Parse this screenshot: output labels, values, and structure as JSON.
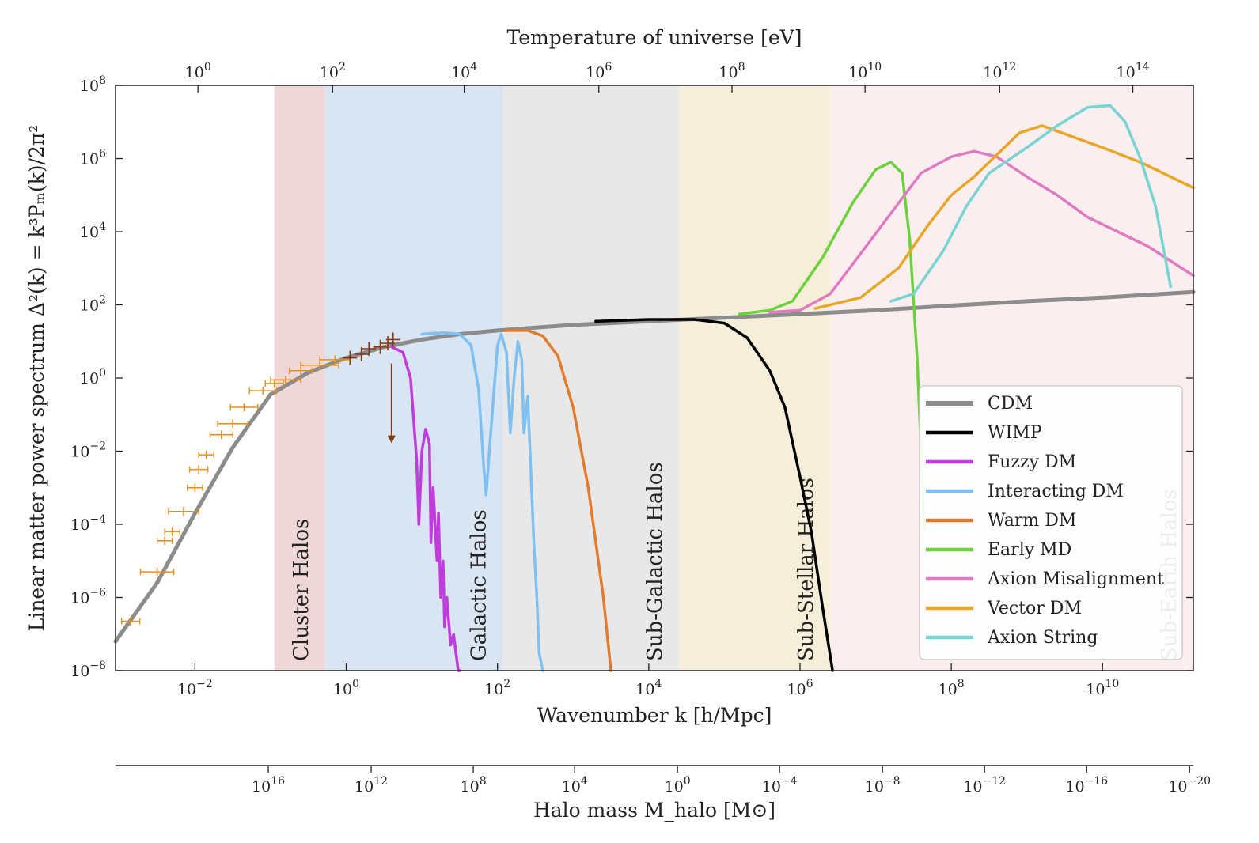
{
  "chart_data": {
    "type": "line",
    "x_scale": "log10",
    "y_scale": "log10",
    "xlim_log10": [
      -3.05,
      11.2
    ],
    "ylim_log10": [
      -8,
      8
    ],
    "xlabel": "Wavenumber k  [h/Mpc]",
    "ylabel": "Linear matter power spectrum Δ²(k) = k³Pₘ(k)/2π²",
    "top_axis": {
      "label": "Temperature of universe [eV]",
      "ticks": [
        {
          "base": "10",
          "exp": "0",
          "at_log10k": -1.96
        },
        {
          "base": "10",
          "exp": "2",
          "at_log10k": -0.18
        },
        {
          "base": "10",
          "exp": "4",
          "at_log10k": 1.56
        },
        {
          "base": "10",
          "exp": "6",
          "at_log10k": 3.34
        },
        {
          "base": "10",
          "exp": "8",
          "at_log10k": 5.1
        },
        {
          "base": "10",
          "exp": "10",
          "at_log10k": 6.86
        },
        {
          "base": "10",
          "exp": "12",
          "at_log10k": 8.64
        },
        {
          "base": "10",
          "exp": "14",
          "at_log10k": 10.4
        }
      ]
    },
    "bottom_ticks": [
      {
        "base": "10",
        "exp": "−2",
        "at_log10k": -2
      },
      {
        "base": "10",
        "exp": "0",
        "at_log10k": 0
      },
      {
        "base": "10",
        "exp": "2",
        "at_log10k": 2
      },
      {
        "base": "10",
        "exp": "4",
        "at_log10k": 4
      },
      {
        "base": "10",
        "exp": "6",
        "at_log10k": 6
      },
      {
        "base": "10",
        "exp": "8",
        "at_log10k": 8
      },
      {
        "base": "10",
        "exp": "10",
        "at_log10k": 10
      }
    ],
    "y_ticks": [
      {
        "base": "10",
        "exp": "8",
        "value_log10": 8
      },
      {
        "base": "10",
        "exp": "6",
        "value_log10": 6
      },
      {
        "base": "10",
        "exp": "4",
        "value_log10": 4
      },
      {
        "base": "10",
        "exp": "2",
        "value_log10": 2
      },
      {
        "base": "10",
        "exp": "0",
        "value_log10": 0
      },
      {
        "base": "10",
        "exp": "−2",
        "value_log10": -2
      },
      {
        "base": "10",
        "exp": "−4",
        "value_log10": -4
      },
      {
        "base": "10",
        "exp": "−6",
        "value_log10": -6
      },
      {
        "base": "10",
        "exp": "−8",
        "value_log10": -8
      }
    ],
    "halo_axis": {
      "label": "Halo mass M_halo [M⊙]",
      "ticks": [
        {
          "base": "10",
          "exp": "16",
          "at_log10k": -1.03
        },
        {
          "base": "10",
          "exp": "12",
          "at_log10k": 0.33
        },
        {
          "base": "10",
          "exp": "8",
          "at_log10k": 1.68
        },
        {
          "base": "10",
          "exp": "4",
          "at_log10k": 3.02
        },
        {
          "base": "10",
          "exp": "0",
          "at_log10k": 4.38
        },
        {
          "base": "10",
          "exp": "−4",
          "at_log10k": 5.73
        },
        {
          "base": "10",
          "exp": "−8",
          "at_log10k": 7.09
        },
        {
          "base": "10",
          "exp": "−12",
          "at_log10k": 8.44
        },
        {
          "base": "10",
          "exp": "−16",
          "at_log10k": 9.79
        },
        {
          "base": "10",
          "exp": "−20",
          "at_log10k": 11.15
        }
      ]
    },
    "regions": [
      {
        "label": "Cluster Halos",
        "k_log10": [
          -0.95,
          -0.28
        ],
        "color": "#e9c6c6"
      },
      {
        "label": "Galactic Halos",
        "k_log10": [
          -0.28,
          2.07
        ],
        "color": "#c9daee"
      },
      {
        "label": "Sub-Galactic Halos",
        "k_log10": [
          2.07,
          4.4
        ],
        "color": "#dedede"
      },
      {
        "label": "Sub-Stellar Halos",
        "k_log10": [
          4.4,
          6.4
        ],
        "color": "#f1e7c8"
      },
      {
        "label": "Sub-Earth Halos",
        "k_log10": [
          6.4,
          11.2
        ],
        "color": "#f8e7e7"
      }
    ],
    "series": [
      {
        "name": "CDM",
        "color": "#8c8c8c",
        "width": 5,
        "x_log10": [
          -3.05,
          -2.5,
          -2,
          -1.5,
          -1,
          -0.5,
          0,
          0.5,
          1,
          1.5,
          2,
          2.5,
          3,
          3.5,
          4,
          5,
          6,
          7,
          8,
          9,
          10,
          11.2
        ],
        "y_log10": [
          -7.2,
          -5.6,
          -3.7,
          -1.9,
          -0.45,
          0.15,
          0.55,
          0.85,
          1.05,
          1.2,
          1.3,
          1.38,
          1.45,
          1.5,
          1.55,
          1.65,
          1.75,
          1.85,
          1.98,
          2.1,
          2.2,
          2.35
        ]
      },
      {
        "name": "WIMP",
        "color": "#000000",
        "width": 3.5,
        "x_log10": [
          3.3,
          4,
          4.6,
          5,
          5.3,
          5.6,
          5.8,
          6,
          6.15,
          6.3,
          6.43
        ],
        "y_log10": [
          1.55,
          1.6,
          1.6,
          1.5,
          1.1,
          0.2,
          -0.8,
          -2.7,
          -4.2,
          -6.3,
          -8
        ]
      },
      {
        "name": "Fuzzy DM",
        "color": "#c03cdc",
        "width": 3.5,
        "x_log10": [
          0.6,
          0.75,
          0.85,
          0.93,
          0.96,
          0.98,
          1,
          1.05,
          1.1,
          1.12,
          1.15,
          1.2,
          1.22,
          1.25,
          1.28,
          1.3,
          1.33,
          1.38,
          1.42,
          1.48,
          1.5
        ],
        "y_log10": [
          0.85,
          0.7,
          0,
          -2.2,
          -4,
          -3,
          -2,
          -1.4,
          -1.8,
          -4.5,
          -3,
          -5,
          -3.7,
          -6,
          -5,
          -6.8,
          -6,
          -7.3,
          -7,
          -8,
          -8
        ]
      },
      {
        "name": "Interacting DM",
        "color": "#7ec0f2",
        "width": 3.5,
        "x_log10": [
          1,
          1.3,
          1.5,
          1.65,
          1.75,
          1.82,
          1.85,
          1.9,
          2,
          2.05,
          2.12,
          2.17,
          2.22,
          2.27,
          2.32,
          2.35,
          2.4,
          2.43,
          2.48,
          2.52,
          2.55,
          2.6
        ],
        "y_log10": [
          1.2,
          1.24,
          1.2,
          0.9,
          -0.3,
          -2.5,
          -3.2,
          -1.8,
          0.9,
          1.2,
          0.7,
          -1.5,
          0,
          1,
          0.5,
          -1.5,
          -0.5,
          -2,
          -4.5,
          -6,
          -7.5,
          -8
        ]
      },
      {
        "name": "Warm DM",
        "color": "#e37b2e",
        "width": 3.5,
        "x_log10": [
          2.1,
          2.4,
          2.6,
          2.8,
          3,
          3.2,
          3.4,
          3.5
        ],
        "y_log10": [
          1.3,
          1.3,
          1.15,
          0.6,
          -0.8,
          -3,
          -6,
          -8
        ]
      },
      {
        "name": "Early MD",
        "color": "#6cd23c",
        "width": 3.5,
        "x_log10": [
          5.2,
          5.6,
          5.9,
          6.3,
          6.7,
          7,
          7.2,
          7.35,
          7.45,
          7.55,
          7.6,
          7.65
        ],
        "y_log10": [
          1.75,
          1.85,
          2.1,
          3.3,
          4.8,
          5.7,
          5.9,
          5.6,
          3.8,
          0.5,
          -2,
          -4.2
        ]
      },
      {
        "name": "Axion Misalignment",
        "color": "#e07bc3",
        "width": 3.5,
        "x_log10": [
          5.6,
          6,
          6.4,
          6.8,
          7.2,
          7.6,
          8,
          8.3,
          8.6,
          9,
          9.4,
          9.8,
          10.2,
          10.6,
          11.2
        ],
        "y_log10": [
          1.8,
          1.85,
          2.3,
          3.4,
          4.5,
          5.6,
          6.05,
          6.2,
          6.05,
          5.5,
          5,
          4.4,
          4,
          3.6,
          2.8
        ]
      },
      {
        "name": "Vector DM",
        "color": "#e9a728",
        "width": 3.5,
        "x_log10": [
          6.2,
          6.8,
          7.3,
          7.7,
          8,
          8.3,
          8.6,
          8.9,
          9.2,
          9.6,
          10,
          10.5,
          11.2
        ],
        "y_log10": [
          1.9,
          2.2,
          3,
          4.2,
          5,
          5.5,
          6.1,
          6.7,
          6.9,
          6.6,
          6.3,
          5.9,
          5.2
        ]
      },
      {
        "name": "Axion String",
        "color": "#78d4d2",
        "width": 3.5,
        "x_log10": [
          7.2,
          7.5,
          7.9,
          8.2,
          8.5,
          9,
          9.4,
          9.8,
          10.1,
          10.3,
          10.5,
          10.7,
          10.9
        ],
        "y_log10": [
          2.1,
          2.3,
          3.5,
          4.7,
          5.6,
          6.3,
          6.9,
          7.4,
          7.45,
          7,
          6,
          4.7,
          2.5
        ]
      }
    ],
    "data_points": {
      "color": "#e3901e",
      "dark_color": "#8b3a10",
      "points": [
        {
          "x": -2.85,
          "y": -6.65,
          "xerr": 0.12,
          "yerr": 0.05
        },
        {
          "x": -2.5,
          "y": -5.3,
          "xerr": 0.22,
          "yerr": 0.06
        },
        {
          "x": -2.4,
          "y": -4.45,
          "xerr": 0.1,
          "yerr": 0.05
        },
        {
          "x": -2.3,
          "y": -4.2,
          "xerr": 0.1,
          "yerr": 0.05
        },
        {
          "x": -2.15,
          "y": -3.65,
          "xerr": 0.2,
          "yerr": 0.06
        },
        {
          "x": -2.0,
          "y": -3.0,
          "xerr": 0.1,
          "yerr": 0.05
        },
        {
          "x": -1.95,
          "y": -2.5,
          "xerr": 0.12,
          "yerr": 0.05
        },
        {
          "x": -1.85,
          "y": -2.1,
          "xerr": 0.1,
          "yerr": 0.05
        },
        {
          "x": -1.65,
          "y": -1.55,
          "xerr": 0.15,
          "yerr": 0.05
        },
        {
          "x": -1.5,
          "y": -1.25,
          "xerr": 0.2,
          "yerr": 0.05
        },
        {
          "x": -1.35,
          "y": -0.8,
          "xerr": 0.18,
          "yerr": 0.05
        },
        {
          "x": -1.1,
          "y": -0.35,
          "xerr": 0.18,
          "yerr": 0.05
        },
        {
          "x": -0.95,
          "y": -0.15,
          "xerr": 0.12,
          "yerr": 0.05
        },
        {
          "x": -0.8,
          "y": -0.05,
          "xerr": 0.2,
          "yerr": 0.05
        },
        {
          "x": -0.6,
          "y": 0.2,
          "xerr": 0.15,
          "yerr": 0.05
        },
        {
          "x": -0.35,
          "y": 0.35,
          "xerr": 0.25,
          "yerr": 0.05
        },
        {
          "x": -0.15,
          "y": 0.5,
          "xerr": 0.2,
          "yerr": 0.05
        }
      ],
      "dark_points": [
        {
          "x": 0.05,
          "y": 0.55
        },
        {
          "x": 0.2,
          "y": 0.65
        },
        {
          "x": 0.3,
          "y": 0.8
        },
        {
          "x": 0.45,
          "y": 0.85
        },
        {
          "x": 0.55,
          "y": 0.95
        },
        {
          "x": 0.62,
          "y": 1.05
        }
      ],
      "limit_point": {
        "x": 0.6,
        "y": 0.4,
        "lower": -1.7
      }
    },
    "legend": {
      "placement": "lower-right"
    }
  }
}
